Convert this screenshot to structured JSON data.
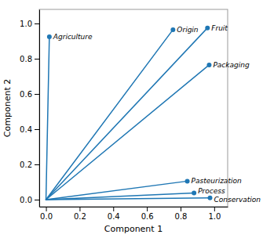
{
  "chart_data": {
    "type": "vector",
    "xlabel": "Component 1",
    "ylabel": "Component 2",
    "labels": [
      "Agriculture",
      "Origin",
      "Fruit",
      "Packaging",
      "Pasteurization",
      "Process",
      "Conservation"
    ],
    "x": [
      0.02,
      0.755,
      0.96,
      0.97,
      0.84,
      0.88,
      0.975
    ],
    "values": [
      0.925,
      0.965,
      0.975,
      0.765,
      0.105,
      0.038,
      0.01
    ],
    "xlim": [
      -0.04,
      1.08
    ],
    "ylim": [
      -0.04,
      1.08
    ],
    "xticks": [
      {
        "value": 0.0,
        "label": "0.0"
      },
      0.2,
      0.4,
      0.6,
      0.8,
      {
        "value": 1.0,
        "label": "1.0"
      }
    ],
    "yticks": [
      {
        "value": 0.0,
        "label": "0.0"
      },
      0.2,
      0.4,
      0.6,
      0.8,
      {
        "value": 1.0,
        "label": "1.0"
      }
    ],
    "grid": false
  }
}
